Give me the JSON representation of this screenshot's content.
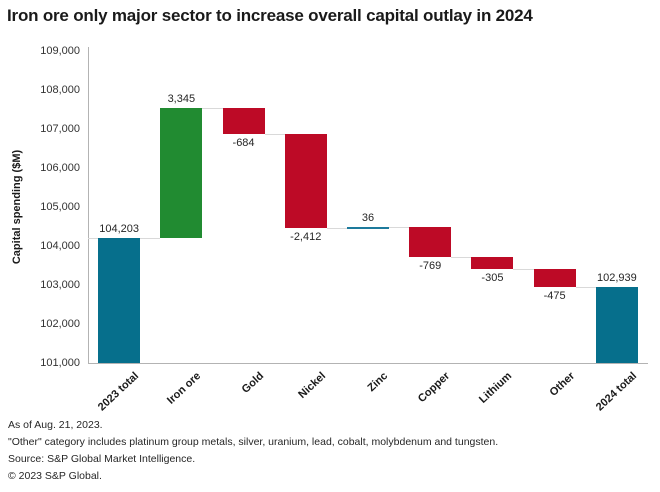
{
  "title": "Iron ore only major sector to increase overall capital outlay in 2024",
  "chart_data": {
    "type": "bar",
    "subtype": "waterfall",
    "title": "Iron ore only major sector to increase overall capital outlay in 2024",
    "xlabel": "",
    "ylabel": "Capital spending ($M)",
    "ylim": [
      101000,
      109000
    ],
    "ytick_step": 1000,
    "ytick_labels": [
      "101,000",
      "102,000",
      "103,000",
      "104,000",
      "105,000",
      "106,000",
      "107,000",
      "108,000",
      "109,000"
    ],
    "grid": false,
    "legend": "none",
    "categories": [
      "2023 total",
      "Iron ore",
      "Gold",
      "Nickel",
      "Zinc",
      "Copper",
      "Lithium",
      "Other",
      "2024 total"
    ],
    "values": [
      104203,
      3345,
      -684,
      -2412,
      36,
      -769,
      -305,
      -475,
      102939
    ],
    "items": [
      {
        "label": "2023 total",
        "value": 104203,
        "display": "104,203",
        "kind": "total",
        "color": "#066f8c"
      },
      {
        "label": "Iron ore",
        "value": 3345,
        "display": "3,345",
        "kind": "increase",
        "color": "#218b31"
      },
      {
        "label": "Gold",
        "value": -684,
        "display": "-684",
        "kind": "decrease",
        "color": "#bd0a26"
      },
      {
        "label": "Nickel",
        "value": -2412,
        "display": "-2,412",
        "kind": "decrease",
        "color": "#bd0a26"
      },
      {
        "label": "Zinc",
        "value": 36,
        "display": "36",
        "kind": "increase",
        "color": "#1d7a9c"
      },
      {
        "label": "Copper",
        "value": -769,
        "display": "-769",
        "kind": "decrease",
        "color": "#bd0a26"
      },
      {
        "label": "Lithium",
        "value": -305,
        "display": "-305",
        "kind": "decrease",
        "color": "#bd0a26"
      },
      {
        "label": "Other",
        "value": -475,
        "display": "-475",
        "kind": "decrease",
        "color": "#bd0a26"
      },
      {
        "label": "2024 total",
        "value": 102939,
        "display": "102,939",
        "kind": "total",
        "color": "#066f8c"
      }
    ],
    "connector_color": "#d9d9d9",
    "axis_color": "#b3b3b3"
  },
  "footnotes": [
    "As of Aug. 21, 2023.",
    "\"Other\" category includes platinum group metals, silver, uranium, lead, cobalt, molybdenum and tungsten.",
    "Source: S&P Global Market Intelligence.",
    "© 2023 S&P Global."
  ]
}
